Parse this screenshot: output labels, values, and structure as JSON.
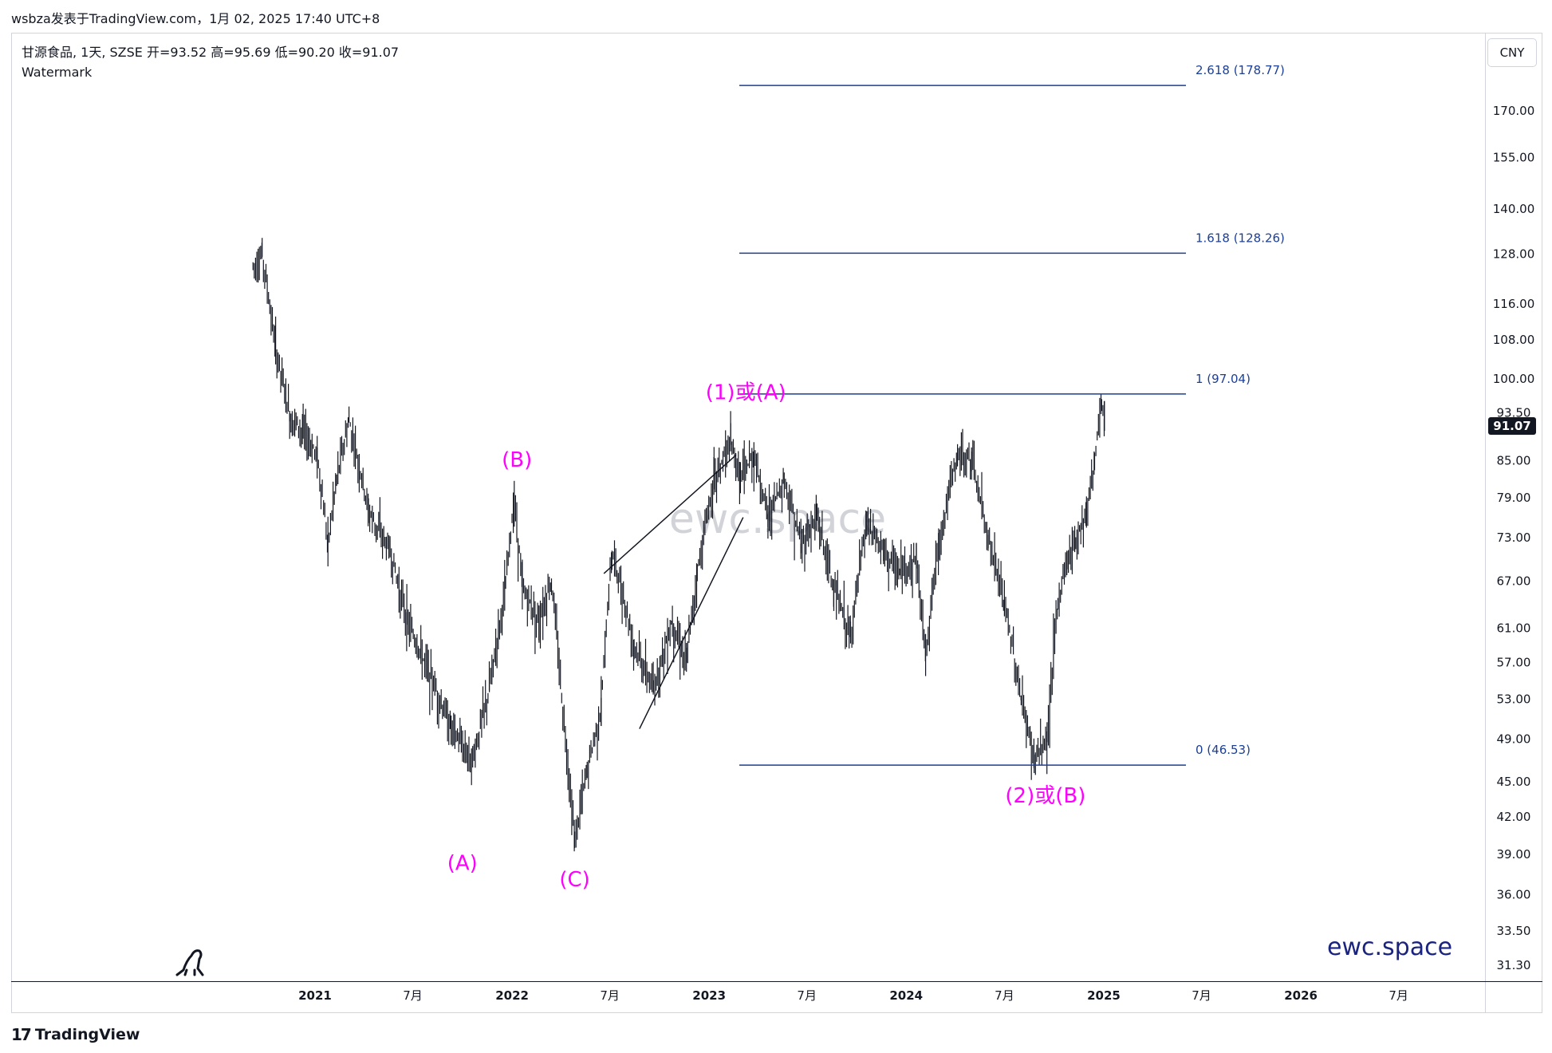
{
  "header": {
    "publisher": "wsbza发表于TradingView.com，1月 02, 2025 17:40 UTC+8"
  },
  "legend": {
    "symbol_line": "甘源食品, 1天, SZSE  开=93.52  高=95.69  低=90.20  收=91.07",
    "watermark_label": "Watermark"
  },
  "currency": "CNY",
  "footer": {
    "logo_text": "TradingView"
  },
  "center_watermark": "ewc.space",
  "brand_text": "ewc.space",
  "colors": {
    "candles": "#131722",
    "fib_line": "#1c3f94",
    "wave_label": "#ff00ff",
    "price_tag_bg": "#131722"
  },
  "chart_data": {
    "type": "line",
    "title": "",
    "yscale": "log",
    "ylim": [
      29,
      200
    ],
    "y_ticks": [
      "170.00",
      "155.00",
      "140.00",
      "128.00",
      "116.00",
      "108.00",
      "100.00",
      "85.00",
      "79.00",
      "73.00",
      "67.00",
      "61.00",
      "57.00",
      "53.00",
      "49.00",
      "45.00",
      "42.00",
      "39.00",
      "36.00",
      "33.50",
      "31.30"
    ],
    "x_ticks": [
      "2021",
      "7月",
      "2022",
      "7月",
      "2023",
      "7月",
      "2024",
      "7月",
      "2025",
      "7月",
      "2026",
      "7月"
    ],
    "last_price": "91.07",
    "partial_tick": "93.50",
    "series": [
      {
        "x": [
          "2020-09-08",
          "2020-09-25",
          "2020-10-20",
          "2020-11-15",
          "2020-12-10",
          "2021-01-05",
          "2021-01-25",
          "2021-02-10",
          "2021-03-05",
          "2021-04-10",
          "2021-05-20",
          "2021-06-20",
          "2021-07-30",
          "2021-09-10",
          "2021-10-20",
          "2021-11-20",
          "2021-12-20",
          "2022-01-05",
          "2022-01-20",
          "2022-02-20",
          "2022-03-15",
          "2022-04-05",
          "2022-04-27",
          "2022-05-20",
          "2022-06-15",
          "2022-07-05",
          "2022-08-15",
          "2022-09-20",
          "2022-10-25",
          "2022-11-20",
          "2022-12-10",
          "2023-01-10",
          "2023-02-10",
          "2023-02-28",
          "2023-03-25",
          "2023-04-20",
          "2023-05-20",
          "2023-06-20",
          "2023-07-20",
          "2023-08-20",
          "2023-09-20",
          "2023-10-20",
          "2023-11-20",
          "2023-12-20",
          "2024-01-20",
          "2024-02-06",
          "2024-03-01",
          "2024-04-05",
          "2024-05-01",
          "2024-06-01",
          "2024-07-01",
          "2024-08-01",
          "2024-08-25",
          "2024-09-18",
          "2024-10-08",
          "2024-10-25",
          "2024-11-10",
          "2024-11-30",
          "2024-12-15",
          "2024-12-28",
          "2025-01-02"
        ],
        "values": [
          125,
          128,
          106,
          93,
          90,
          86,
          72,
          82,
          92,
          77,
          71,
          62,
          56,
          50,
          47,
          54,
          66,
          79,
          66,
          62,
          67,
          52,
          40,
          46,
          52,
          71,
          59,
          54,
          62,
          57,
          68,
          82,
          88,
          82,
          86,
          76,
          82,
          72,
          76,
          66,
          60,
          75,
          71,
          68,
          70,
          58,
          72,
          86,
          85,
          73,
          64,
          53,
          47,
          49,
          64,
          70,
          73,
          77,
          85,
          95,
          91.07
        ]
      }
    ],
    "fibonacci": [
      {
        "level": "2.618 (178.77)",
        "value": 178.77
      },
      {
        "level": "1.618 (128.26)",
        "value": 128.26
      },
      {
        "level": "1 (97.04)",
        "value": 97.04
      },
      {
        "level": "0 (46.53)",
        "value": 46.53
      }
    ],
    "wave_labels": [
      {
        "text": "(A)",
        "x": "2021-10-01",
        "value": 37.8
      },
      {
        "text": "(B)",
        "x": "2022-01-10",
        "value": 84
      },
      {
        "text": "(C)",
        "x": "2022-04-27",
        "value": 36.6
      },
      {
        "text": "(1)或(A)",
        "x": "2023-03-10",
        "value": 96
      },
      {
        "text": "(2)或(B)",
        "x": "2024-09-15",
        "value": 43.2
      }
    ],
    "wedge_lines": [
      {
        "x1": "2022-06-20",
        "y1": 68,
        "x2": "2023-02-20",
        "y2": 86
      },
      {
        "x1": "2022-08-25",
        "y1": 50,
        "x2": "2023-03-05",
        "y2": 76
      }
    ]
  }
}
